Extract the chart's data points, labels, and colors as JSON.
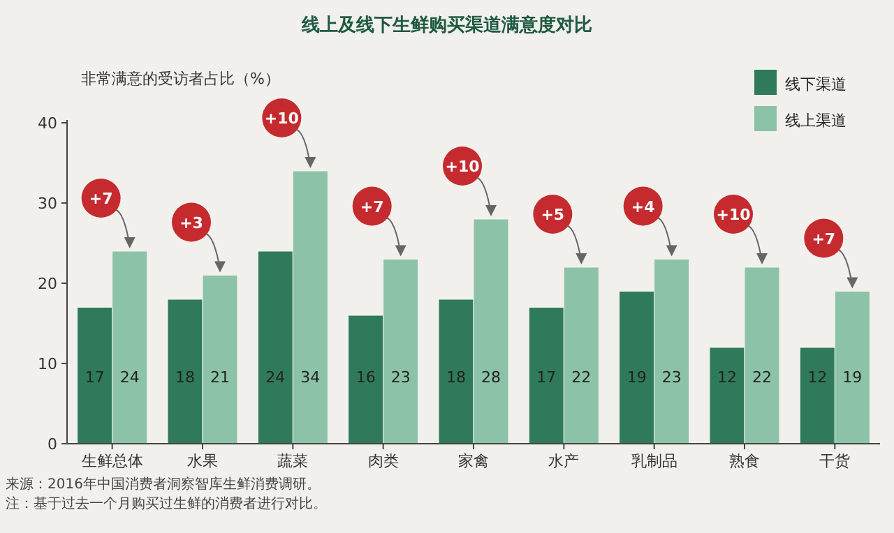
{
  "chart_data": {
    "type": "bar",
    "title": "线上及线下生鲜购买渠道满意度对比",
    "ylabel": "非常满意的受访者占比（%）",
    "categories": [
      "生鲜总体",
      "水果",
      "蔬菜",
      "肉类",
      "家禽",
      "水产",
      "乳制品",
      "熟食",
      "干货"
    ],
    "series": [
      {
        "name": "线下渠道",
        "color": "#2f7a5a",
        "values": [
          17,
          18,
          24,
          16,
          18,
          17,
          19,
          12,
          12
        ]
      },
      {
        "name": "线上渠道",
        "color": "#8cc3a8",
        "values": [
          24,
          21,
          34,
          23,
          28,
          22,
          23,
          22,
          19
        ]
      }
    ],
    "ylim": [
      0,
      40
    ],
    "yticks": [
      0,
      10,
      20,
      30,
      40
    ],
    "data_labels": true,
    "legend": "top right",
    "grid": false,
    "annotations": [
      {
        "text": "+7",
        "x": "生鲜总体",
        "y": 24
      },
      {
        "text": "+3",
        "x": "水果",
        "y": 21
      },
      {
        "text": "+10",
        "x": "蔬菜",
        "y": 34
      },
      {
        "text": "+7",
        "x": "肉类",
        "y": 23
      },
      {
        "text": "+10",
        "x": "家禽",
        "y": 28
      },
      {
        "text": "+5",
        "x": "水产",
        "y": 22
      },
      {
        "text": "+4",
        "x": "乳制品",
        "y": 23
      },
      {
        "text": "+10",
        "x": "熟食",
        "y": 22
      },
      {
        "text": "+7",
        "x": "干货",
        "y": 19
      },
      "来源：2016年中国消费者洞察智库生鲜消费调研。",
      "注：基于过去一个月购买过生鲜的消费者进行对比。"
    ]
  }
}
